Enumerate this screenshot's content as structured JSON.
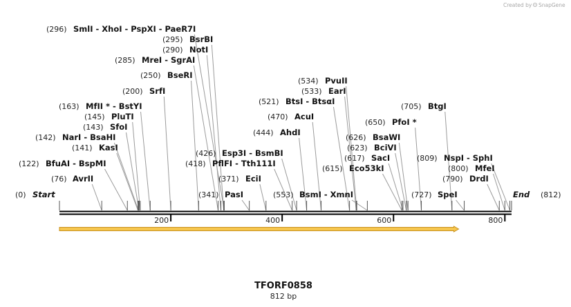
{
  "credit": {
    "created_by": "Created by",
    "brand": "SnapGene"
  },
  "sequence": {
    "name": "TFORF0858",
    "length_label": "812 bp",
    "length_bp": 812
  },
  "axis": {
    "ticks": [
      {
        "value": 200,
        "label": "200"
      },
      {
        "value": 400,
        "label": "400"
      },
      {
        "value": 600,
        "label": "600"
      },
      {
        "value": 800,
        "label": "800"
      }
    ]
  },
  "feature": {
    "start_bp": 1,
    "end_bp": 717,
    "direction": "forward",
    "color": "#f0b429"
  },
  "colors": {
    "backbone": "#000000",
    "leader": "#9a9a9a",
    "feature_fill": "#f6c64e",
    "feature_stroke": "#c8901c"
  },
  "labels": [
    {
      "pos": "(296)",
      "text": "SmlI  - XhoI  - PspXI  - PaeR7I",
      "site": 296
    },
    {
      "pos": "(295)",
      "text": "BsrBI",
      "site": 295
    },
    {
      "pos": "(290)",
      "text": "NotI",
      "site": 290
    },
    {
      "pos": "(285)",
      "text": "MreI  - SgrAI",
      "site": 285
    },
    {
      "pos": "(250)",
      "text": "BseRI",
      "site": 250
    },
    {
      "pos": "(200)",
      "text": "SrfI",
      "site": 200
    },
    {
      "pos": "(163)",
      "text": "MfII *  - BstYI",
      "site": 163
    },
    {
      "pos": "(145)",
      "text": "PluTI",
      "site": 145
    },
    {
      "pos": "(143)",
      "text": "SfoI",
      "site": 143
    },
    {
      "pos": "(142)",
      "text": "NarI  - BsaHI",
      "site": 142
    },
    {
      "pos": "(141)",
      "text": "KasI",
      "site": 141
    },
    {
      "pos": "(122)",
      "text": "BfuAI  - BspMI",
      "site": 122
    },
    {
      "pos": "(76)",
      "text": "AvrII",
      "site": 76
    },
    {
      "pos": "(0)",
      "text": "Start",
      "site": 0,
      "italic": true
    },
    {
      "pos": "(426)",
      "text": "Esp3I  - BsmBI",
      "site": 426
    },
    {
      "pos": "(418)",
      "text": "PflFI  - Tth111I",
      "site": 418
    },
    {
      "pos": "(371)",
      "text": "EciI",
      "site": 371
    },
    {
      "pos": "(341)",
      "text": "PasI",
      "site": 341
    },
    {
      "pos": "(534)",
      "text": "PvuII",
      "site": 534
    },
    {
      "pos": "(533)",
      "text": "EarI",
      "site": 533
    },
    {
      "pos": "(521)",
      "text": "BtsI  - BtsαI",
      "site": 521
    },
    {
      "pos": "(470)",
      "text": "AcuI",
      "site": 470
    },
    {
      "pos": "(444)",
      "text": "AhdI",
      "site": 444
    },
    {
      "pos": "(553)",
      "text": "BsmI  - XmnI",
      "site": 553
    },
    {
      "pos": "(705)",
      "text": "BtgI",
      "site": 705
    },
    {
      "pos": "(650)",
      "text": "PfoI *",
      "site": 650
    },
    {
      "pos": "(626)",
      "text": "BsaWI",
      "site": 626
    },
    {
      "pos": "(623)",
      "text": "BciVI",
      "site": 623
    },
    {
      "pos": "(617)",
      "text": "SacI",
      "site": 617
    },
    {
      "pos": "(615)",
      "text": "Eco53kI",
      "site": 615
    },
    {
      "pos": "(727)",
      "text": "SpeI",
      "site": 727
    },
    {
      "pos": "(809)",
      "text": "NspI  - SphI",
      "site": 809
    },
    {
      "pos": "(800)",
      "text": "MfeI",
      "site": 800
    },
    {
      "pos": "(790)",
      "text": "DrdI",
      "site": 790
    },
    {
      "pos": "(812)",
      "text": "End",
      "site": 812,
      "italic": true
    }
  ]
}
